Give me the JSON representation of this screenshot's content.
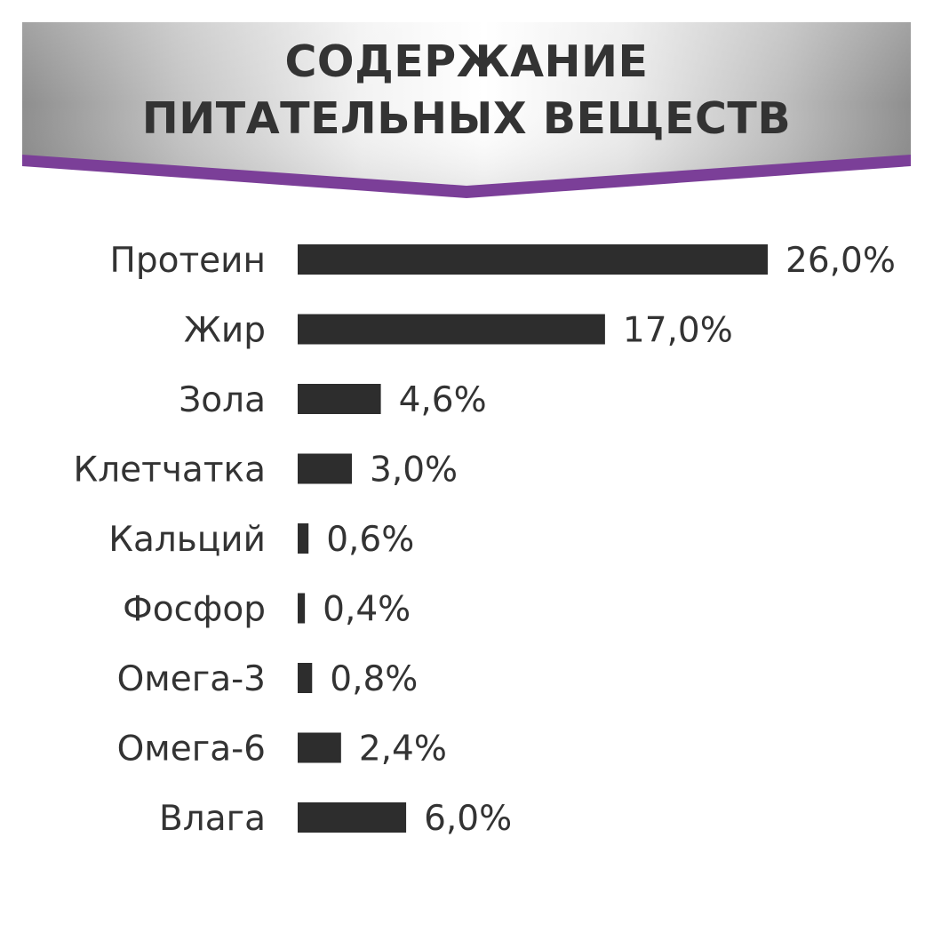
{
  "header": {
    "title_line1": "СОДЕРЖАНИЕ",
    "title_line2": "ПИТАТЕЛЬНЫХ ВЕЩЕСТВ",
    "accent_color": "#7b3f98",
    "background": "silver-gradient"
  },
  "chart_data": {
    "type": "bar",
    "orientation": "horizontal",
    "title": "СОДЕРЖАНИЕ ПИТАТЕЛЬНЫХ ВЕЩЕСТВ",
    "categories": [
      "Протеин",
      "Жир",
      "Зола",
      "Клетчатка",
      "Кальций",
      "Фосфор",
      "Омега-3",
      "Омега-6",
      "Влага"
    ],
    "values": [
      26.0,
      17.0,
      4.6,
      3.0,
      0.6,
      0.4,
      0.8,
      2.4,
      6.0
    ],
    "value_labels": [
      "26,0%",
      "17,0%",
      "4,6%",
      "3,0%",
      "0,6%",
      "0,4%",
      "0,8%",
      "2,4%",
      "6,0%"
    ],
    "unit": "%",
    "bar_color": "#2d2d2d",
    "text_color": "#333333",
    "xlim": [
      0,
      26
    ],
    "grid": false,
    "legend": "none"
  }
}
